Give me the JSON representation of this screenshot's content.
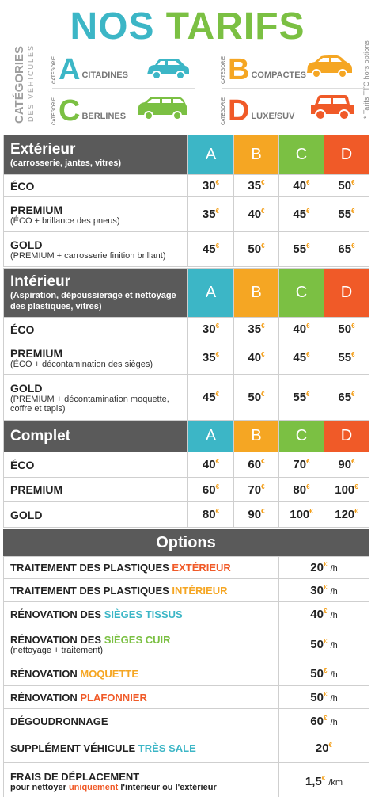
{
  "title": {
    "word1": "NOS",
    "word2": "TARIFS"
  },
  "categories_label": {
    "main": "CATÉGORIES",
    "sub": "DES VÉHICULES"
  },
  "note": "* Tarifs TTC hors options",
  "colors": {
    "a": "#3cb6c6",
    "b": "#f5a623",
    "c": "#7bc043",
    "d": "#f05a28",
    "header": "#5a5a5a"
  },
  "categories": [
    {
      "small": "CATÉGORIE",
      "letter": "A",
      "name": "CITADINES",
      "color": "#3cb6c6",
      "icon": "car-icon"
    },
    {
      "small": "CATÉGORIE",
      "letter": "B",
      "name": "COMPACTES",
      "color": "#f5a623",
      "icon": "car-icon"
    },
    {
      "small": "CATÉGORIE",
      "letter": "C",
      "name": "BERLINES",
      "color": "#7bc043",
      "icon": "minivan-icon"
    },
    {
      "small": "CATÉGORIE",
      "letter": "D",
      "name": "LUXE/SUV",
      "color": "#f05a28",
      "icon": "suv-icon"
    }
  ],
  "col_letters": [
    "A",
    "B",
    "C",
    "D"
  ],
  "currency": "€",
  "sections": [
    {
      "title": "Extérieur",
      "subtitle": "(carrosserie, jantes, vitres)",
      "rows": [
        {
          "name": "ÉCO",
          "desc": "",
          "prices": [
            "30",
            "35",
            "40",
            "50"
          ]
        },
        {
          "name": "PREMIUM",
          "desc": "(ÉCO + brillance des pneus)",
          "prices": [
            "35",
            "40",
            "45",
            "55"
          ]
        },
        {
          "name": "GOLD",
          "desc": "(PREMIUM + carrosserie finition brillant)",
          "prices": [
            "45",
            "50",
            "55",
            "65"
          ]
        }
      ]
    },
    {
      "title": "Intérieur",
      "subtitle": "(Aspiration, dépoussierage et nettoyage des plastiques, vitres)",
      "rows": [
        {
          "name": "ÉCO",
          "desc": "",
          "prices": [
            "30",
            "35",
            "40",
            "50"
          ]
        },
        {
          "name": "PREMIUM",
          "desc": "(ÉCO + décontamination des sièges)",
          "prices": [
            "35",
            "40",
            "45",
            "55"
          ]
        },
        {
          "name": "GOLD",
          "desc": "(PREMIUM + décontamination moquette, coffre et tapis)",
          "prices": [
            "45",
            "50",
            "55",
            "65"
          ]
        }
      ]
    },
    {
      "title": "Complet",
      "subtitle": "",
      "rows": [
        {
          "name": "ÉCO",
          "desc": "",
          "prices": [
            "40",
            "60",
            "70",
            "90"
          ]
        },
        {
          "name": "PREMIUM",
          "desc": "",
          "prices": [
            "60",
            "70",
            "80",
            "100"
          ]
        },
        {
          "name": "GOLD",
          "desc": "",
          "prices": [
            "80",
            "90",
            "100",
            "120"
          ]
        }
      ]
    }
  ],
  "options_title": "Options",
  "options": [
    {
      "pre": "TRAITEMENT DES PLASTIQUES ",
      "hl": "EXTÉRIEUR",
      "hl_class": "ko",
      "desc": "",
      "price": "20",
      "unit": "/h"
    },
    {
      "pre": "TRAITEMENT DES PLASTIQUES ",
      "hl": "INTÉRIEUR",
      "hl_class": "kb",
      "desc": "",
      "price": "30",
      "unit": "/h"
    },
    {
      "pre": "RÉNOVATION DES ",
      "hl": "SIÈGES TISSUS",
      "hl_class": "kc",
      "desc": "",
      "price": "40",
      "unit": "/h"
    },
    {
      "pre": "RÉNOVATION DES ",
      "hl": "SIÈGES CUIR",
      "hl_class": "kg",
      "desc": "(nettoyage + traitement)",
      "price": "50",
      "unit": "/h"
    },
    {
      "pre": "RÉNOVATION ",
      "hl": "MOQUETTE",
      "hl_class": "kb",
      "desc": "",
      "price": "50",
      "unit": "/h"
    },
    {
      "pre": "RÉNOVATION ",
      "hl": "PLAFONNIER",
      "hl_class": "ko",
      "desc": "",
      "price": "50",
      "unit": "/h"
    },
    {
      "pre": "DÉGOUDRONNAGE",
      "hl": "",
      "hl_class": "",
      "desc": "",
      "price": "60",
      "unit": "/h"
    },
    {
      "pre": "SUPPLÉMENT VÉHICULE ",
      "hl": "TRÈS SALE",
      "hl_class": "kc",
      "desc": "",
      "price": "20",
      "unit": ""
    },
    {
      "pre": "FRAIS DE DÉPLACEMENT",
      "hl": "",
      "hl_class": "",
      "desc2_pre": "pour nettoyer ",
      "desc2_hl": "uniquement",
      "desc2_post": " l'intérieur ou l'extérieur",
      "price": "1,5",
      "unit": "/km"
    }
  ]
}
